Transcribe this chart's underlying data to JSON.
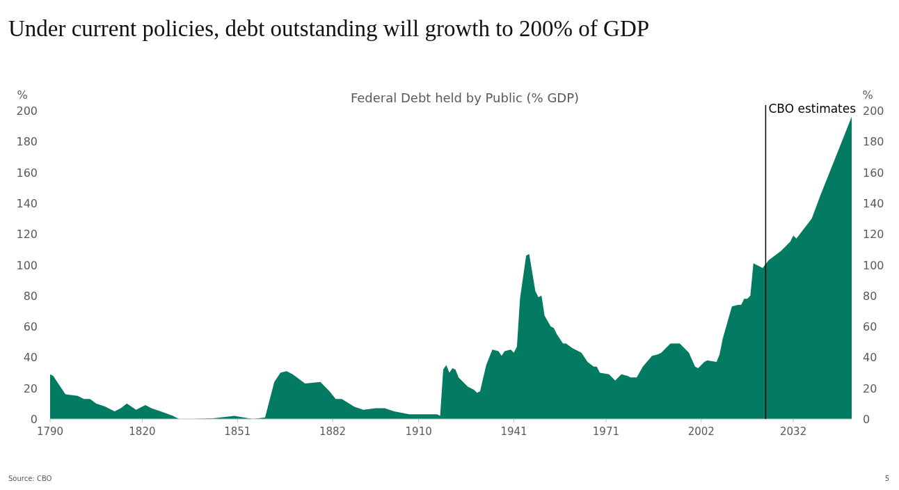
{
  "chart_data": {
    "type": "area",
    "title": "Under current policies, debt outstanding will growth to 200% of GDP",
    "subtitle": "Federal Debt held by Public (% GDP)",
    "ylabel": "%",
    "y2label": "%",
    "series": [
      {
        "color": "#037b62",
        "x": [
          1790,
          1791,
          1795,
          1799,
          1801,
          1803,
          1805,
          1808,
          1811,
          1813,
          1815,
          1818,
          1821,
          1823,
          1826,
          1830,
          1832,
          1836,
          1843,
          1850,
          1856,
          1860,
          1863,
          1865,
          1867,
          1869,
          1873,
          1878,
          1881,
          1883,
          1885,
          1889,
          1892,
          1896,
          1899,
          1902,
          1907,
          1916,
          1917,
          1918,
          1919,
          1920,
          1921,
          1922,
          1923,
          1926,
          1928,
          1929,
          1930,
          1932,
          1934,
          1936,
          1937,
          1938,
          1940,
          1941,
          1942,
          1943,
          1945,
          1946,
          1948,
          1949,
          1950,
          1951,
          1953,
          1954,
          1955,
          1957,
          1958,
          1960,
          1963,
          1965,
          1967,
          1968,
          1969,
          1972,
          1974,
          1976,
          1978,
          1979,
          1981,
          1983,
          1986,
          1988,
          1989,
          1992,
          1995,
          1998,
          2000,
          2001,
          2003,
          2004,
          2007,
          2008,
          2009,
          2012,
          2014,
          2015,
          2016,
          2017,
          2018,
          2019,
          2022,
          2024,
          2028,
          2031,
          2032,
          2033,
          2038,
          2041,
          2045,
          2051
        ],
        "values": [
          29,
          28,
          16,
          15,
          13,
          13,
          10,
          8,
          5,
          7,
          10,
          6,
          9,
          7,
          5,
          2,
          0,
          0,
          0.5,
          2,
          0,
          1,
          24,
          30,
          31,
          29,
          23,
          24,
          18,
          13,
          13,
          8,
          6,
          7,
          7,
          5,
          3,
          3,
          2,
          32,
          35,
          30,
          33,
          32,
          27,
          21,
          19,
          17,
          18,
          35,
          45,
          44,
          41,
          44,
          45,
          43,
          47,
          78,
          106,
          107,
          83,
          79,
          80,
          67,
          60,
          59,
          55,
          49,
          49,
          46,
          43,
          37,
          34,
          34,
          30,
          29,
          25,
          29,
          28,
          27,
          27,
          34,
          41,
          42,
          43,
          49,
          49,
          43,
          34,
          33,
          37,
          38,
          37,
          42,
          52,
          73,
          74,
          74,
          78,
          78,
          80,
          101,
          98,
          103,
          109,
          115,
          119,
          117,
          130,
          146,
          166,
          196
        ]
      }
    ],
    "xlim": [
      1790,
      2051
    ],
    "xticks": [
      1790,
      1820,
      1851,
      1882,
      1910,
      1941,
      1971,
      2002,
      2032
    ],
    "ylim": [
      0,
      200
    ],
    "yticks": [
      0,
      20,
      40,
      60,
      80,
      100,
      120,
      140,
      160,
      180,
      200
    ],
    "y2lim": [
      0,
      200
    ],
    "y2ticks": [
      0,
      20,
      40,
      60,
      80,
      100,
      120,
      140,
      160,
      180,
      200
    ],
    "ref_lines": [
      {
        "axis": "x",
        "value": 2023,
        "label": "CBO estimates",
        "color": "#000000"
      }
    ],
    "annotations": [
      "Source: CBO",
      "5"
    ],
    "grid": false
  }
}
